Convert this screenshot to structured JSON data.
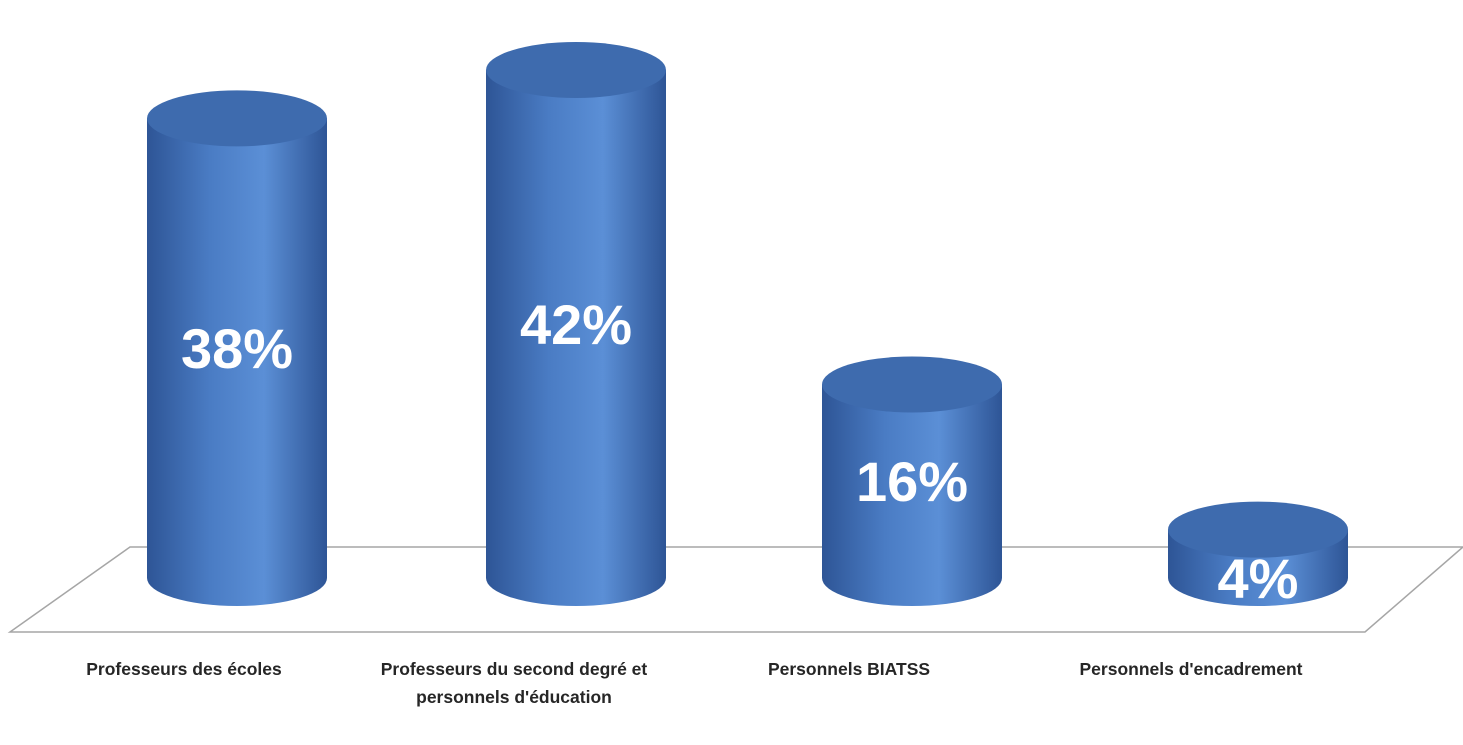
{
  "chart_data": {
    "type": "bar",
    "style": "3d-cylinder",
    "categories": [
      "Professeurs des écoles",
      "Professeurs du second degré et personnels d'éducation",
      "Personnels BIATSS",
      "Personnels d'encadrement"
    ],
    "values": [
      38,
      42,
      16,
      4
    ],
    "data_labels": [
      "38%",
      "42%",
      "16%",
      "4%"
    ],
    "unit": "%",
    "title": "",
    "xlabel": "",
    "ylabel": "",
    "ylim": [
      0,
      42
    ],
    "grid": false,
    "legend": "none",
    "colors": {
      "bar": "#4F81BD",
      "bar_dark": "#2E5596",
      "bar_light": "#5B8FD6",
      "top_face": "#3E6BAE",
      "data_label": "#FFFFFF",
      "floor_line": "#A6A6A6",
      "category_label": "#262626"
    }
  }
}
